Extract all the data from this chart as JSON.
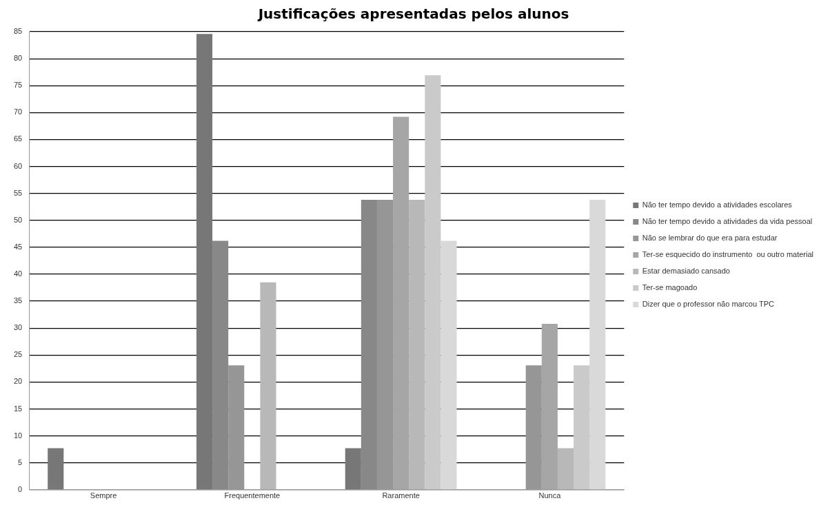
{
  "chart_data": {
    "type": "bar",
    "title": "Justificações apresentadas pelos alunos",
    "categories": [
      "Sempre",
      "Frequentemente",
      "Raramente",
      "Nunca"
    ],
    "series": [
      {
        "name": "Não ter tempo devido a atividades escolares",
        "color": "#777777",
        "values": [
          7.7,
          84.6,
          7.7,
          0
        ]
      },
      {
        "name": "Não ter tempo devido a atividades da vida pessoal",
        "color": "#888888",
        "values": [
          0,
          46.2,
          53.8,
          0
        ]
      },
      {
        "name": "Não se lembrar do que era para estudar",
        "color": "#969696",
        "values": [
          0,
          23.1,
          53.8,
          23.1
        ]
      },
      {
        "name": "Ter-se esquecido do instrumento  ou outro material",
        "color": "#a6a6a6",
        "values": [
          0,
          0,
          69.2,
          30.8
        ]
      },
      {
        "name": "Estar demasiado cansado",
        "color": "#b8b8b8",
        "values": [
          0,
          38.5,
          53.8,
          7.7
        ]
      },
      {
        "name": "Ter-se magoado",
        "color": "#cacaca",
        "values": [
          0,
          0,
          76.9,
          23.1
        ]
      },
      {
        "name": "Dizer que o professor não marcou TPC",
        "color": "#d9d9d9",
        "values": [
          0,
          0,
          46.2,
          53.8
        ]
      }
    ],
    "ylim": [
      0,
      85
    ],
    "yticks": [
      0,
      5,
      10,
      15,
      20,
      25,
      30,
      35,
      40,
      45,
      50,
      55,
      60,
      65,
      70,
      75,
      80,
      85
    ],
    "grid": "y",
    "legend": "right"
  }
}
